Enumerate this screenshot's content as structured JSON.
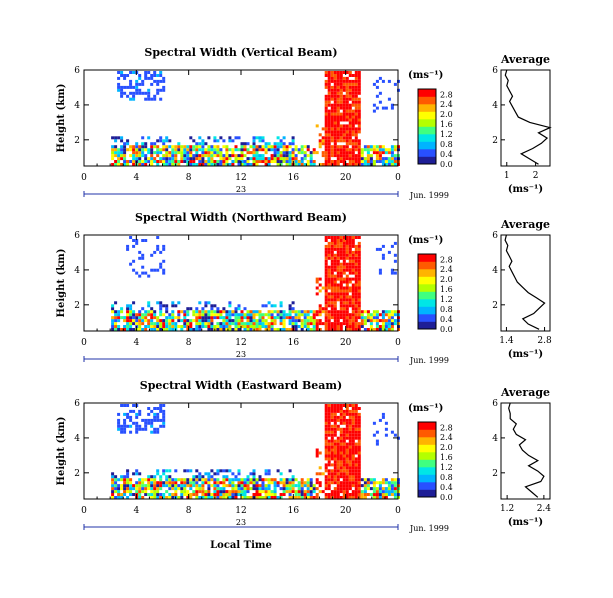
{
  "x_axis": {
    "ticks": [
      "0",
      "4",
      "8",
      "12",
      "16",
      "20",
      "0"
    ],
    "day_label": "23",
    "date_label": "Jun. 1999",
    "xlabel": "Local Time"
  },
  "units": "(ms⁻¹)",
  "colorbar_colors": [
    "#1e1e96",
    "#2850ff",
    "#00b4ff",
    "#00e6e6",
    "#40ff80",
    "#b4ff00",
    "#ffff00",
    "#ffb400",
    "#ff5a00",
    "#ff0000"
  ],
  "avg_title": "Average",
  "panels": [
    {
      "title": "Spectral Width (Vertical Beam)",
      "ylabel": "Height (km)",
      "y_ticks": [
        "2",
        "4",
        "6"
      ],
      "colorbar_ticks": [
        "0.0",
        "0.4",
        "0.8",
        "1.2",
        "1.6",
        "2.0",
        "2.4",
        "2.8"
      ],
      "avg": {
        "x_ticks": [
          "1",
          "2"
        ],
        "xlabel": "(ms⁻¹)"
      }
    },
    {
      "title": "Spectral Width (Northward Beam)",
      "ylabel": "Height (km)",
      "y_ticks": [
        "2",
        "4",
        "6"
      ],
      "colorbar_ticks": [
        "0.0",
        "0.4",
        "0.8",
        "1.2",
        "1.6",
        "2.0",
        "2.4",
        "2.8"
      ],
      "avg": {
        "x_ticks": [
          "1.4",
          "2.8"
        ],
        "xlabel": "(ms⁻¹)"
      }
    },
    {
      "title": "Spectral Width (Eastward Beam)",
      "ylabel": "Height (km)",
      "y_ticks": [
        "2",
        "4",
        "6"
      ],
      "colorbar_ticks": [
        "0.0",
        "0.4",
        "0.8",
        "1.2",
        "1.6",
        "2.0",
        "2.4",
        "2.8"
      ],
      "avg": {
        "x_ticks": [
          "1.2",
          "2.4"
        ],
        "xlabel": "(ms⁻¹)"
      }
    }
  ],
  "chart_data": [
    {
      "type": "heatmap",
      "title": "Spectral Width (Vertical Beam)",
      "ylabel": "Height (km)",
      "x_range_hours": [
        0,
        24
      ],
      "y_range_km": [
        0.5,
        6
      ],
      "color_range": [
        0,
        2.8
      ],
      "average_profile": {
        "xlim": [
          0.8,
          2.5
        ],
        "height_km": [
          0.6,
          0.9,
          1.2,
          1.5,
          1.8,
          2.1,
          2.4,
          2.7,
          3.0,
          3.3,
          3.6,
          3.9,
          4.2,
          4.5,
          4.8,
          5.1,
          5.4,
          5.7,
          6.0
        ],
        "value": [
          2.1,
          1.8,
          1.5,
          1.9,
          2.2,
          2.4,
          2.1,
          2.5,
          1.8,
          1.4,
          1.3,
          1.2,
          1.1,
          1.2,
          1.1,
          1.0,
          1.05,
          0.95,
          1.0
        ]
      }
    },
    {
      "type": "heatmap",
      "title": "Spectral Width (Northward Beam)",
      "ylabel": "Height (km)",
      "x_range_hours": [
        0,
        24
      ],
      "y_range_km": [
        0.5,
        6
      ],
      "color_range": [
        0,
        2.8
      ],
      "average_profile": {
        "xlim": [
          1.2,
          3.0
        ],
        "height_km": [
          0.6,
          0.9,
          1.2,
          1.5,
          1.8,
          2.1,
          2.4,
          2.7,
          3.0,
          3.3,
          3.6,
          3.9,
          4.2,
          4.5,
          4.8,
          5.1,
          5.4,
          5.7,
          6.0
        ],
        "value": [
          2.6,
          2.2,
          2.0,
          2.4,
          2.6,
          2.8,
          2.5,
          2.2,
          2.0,
          1.8,
          1.7,
          1.6,
          1.5,
          1.6,
          1.5,
          1.4,
          1.45,
          1.35,
          1.4
        ]
      }
    },
    {
      "type": "heatmap",
      "title": "Spectral Width (Eastward Beam)",
      "ylabel": "Height (km)",
      "x_range_hours": [
        0,
        24
      ],
      "y_range_km": [
        0.5,
        6
      ],
      "color_range": [
        0,
        2.8
      ],
      "average_profile": {
        "xlim": [
          1.0,
          2.6
        ],
        "height_km": [
          0.6,
          0.9,
          1.2,
          1.5,
          1.8,
          2.1,
          2.4,
          2.7,
          3.0,
          3.3,
          3.6,
          3.9,
          4.2,
          4.5,
          4.8,
          5.1,
          5.4,
          5.7,
          6.0
        ],
        "value": [
          2.2,
          2.0,
          1.8,
          2.3,
          2.4,
          2.2,
          1.9,
          2.2,
          1.9,
          1.7,
          1.6,
          1.8,
          1.5,
          1.4,
          1.5,
          1.3,
          1.3,
          1.25,
          1.3
        ]
      }
    }
  ]
}
